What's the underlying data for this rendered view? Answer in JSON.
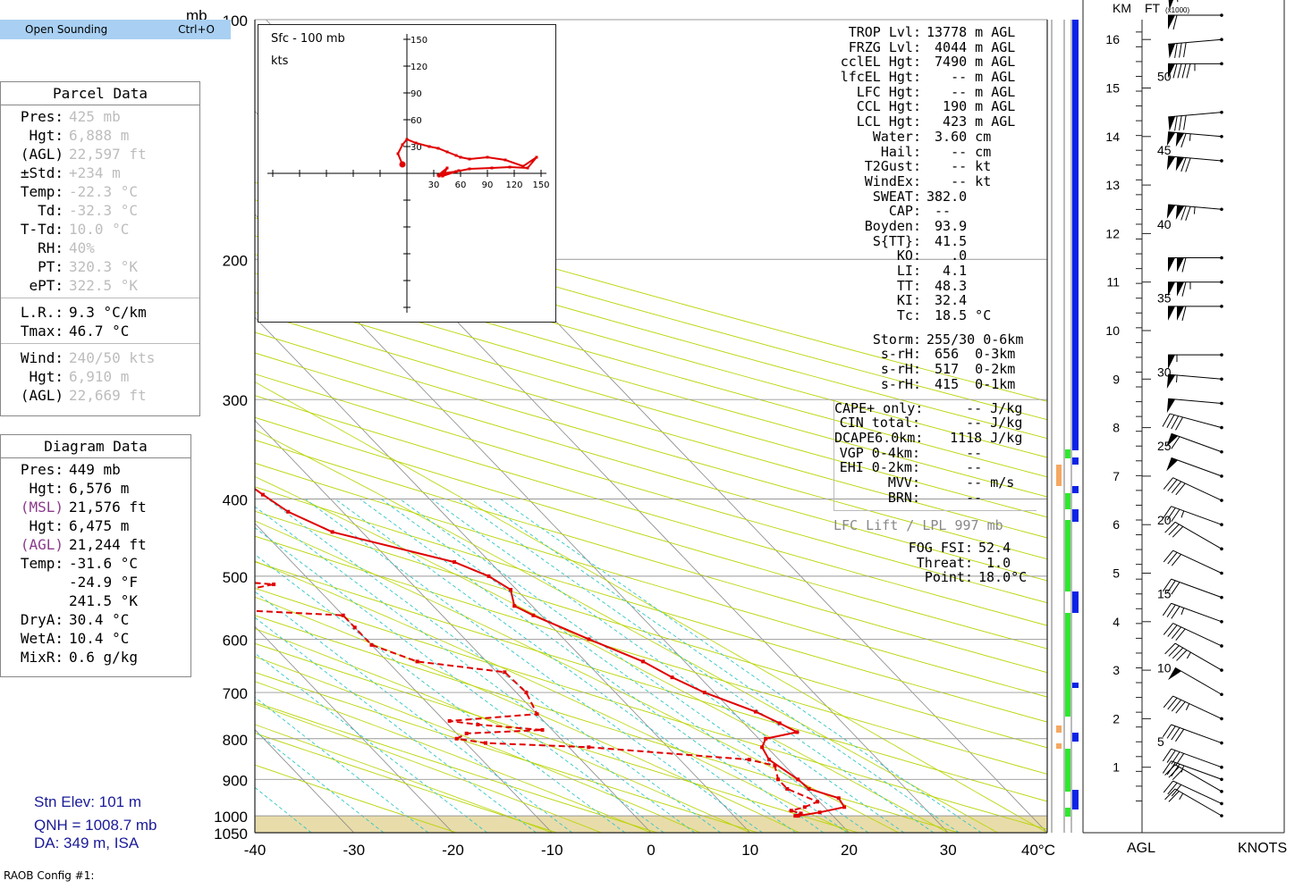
{
  "menu": {
    "label": "Open Sounding",
    "shortcut": "Ctrl+O"
  },
  "parcel_panel": {
    "title": "Parcel Data",
    "rows": [
      {
        "label": "Pres:",
        "value": "425 mb",
        "style": "grey"
      },
      {
        "label": "Hgt:",
        "value": "6,888 m",
        "style": "grey"
      },
      {
        "label": "(AGL)",
        "value": "22,597 ft",
        "style": "grey"
      },
      {
        "label": "±Std:",
        "value": "+234 m",
        "style": "grey"
      },
      {
        "label": "Temp:",
        "value": "-22.3 °C",
        "style": "grey"
      },
      {
        "label": "Td:",
        "value": "-32.3 °C",
        "style": "grey"
      },
      {
        "label": "T-Td:",
        "value": "10.0 °C",
        "style": "grey"
      },
      {
        "label": "RH:",
        "value": "40%",
        "style": "grey"
      },
      {
        "label": "PT:",
        "value": "320.3 °K",
        "style": "grey"
      },
      {
        "label": "ePT:",
        "value": "322.5 °K",
        "style": "grey"
      }
    ],
    "rows2": [
      {
        "label": "L.R.:",
        "value": "9.3 °C/km",
        "style": ""
      },
      {
        "label": "Tmax:",
        "value": "46.7 °C",
        "style": ""
      }
    ],
    "rows3": [
      {
        "label": "Wind:",
        "value": "240/50 kts",
        "style": "grey"
      },
      {
        "label": "Hgt:",
        "value": "6,910 m",
        "style": "grey"
      },
      {
        "label": "(AGL)",
        "value": "22,669 ft",
        "style": "grey"
      }
    ]
  },
  "diagram_panel": {
    "title": "Diagram Data",
    "rows": [
      {
        "label": "Pres:",
        "value": "449 mb",
        "style": ""
      },
      {
        "label": "Hgt:",
        "value": "6,576 m",
        "style": ""
      },
      {
        "label": "(MSL)",
        "value": "21,576 ft",
        "style": "purple"
      },
      {
        "label": "Hgt:",
        "value": "6,475 m",
        "style": ""
      },
      {
        "label": "(AGL)",
        "value": "21,244 ft",
        "style": "purple"
      },
      {
        "label": "Temp:",
        "value": "-31.6 °C",
        "style": ""
      },
      {
        "label": "",
        "value": "-24.9 °F",
        "style": ""
      },
      {
        "label": "",
        "value": "241.5 °K",
        "style": ""
      },
      {
        "label": "DryA:",
        "value": "30.4 °C",
        "style": ""
      },
      {
        "label": "WetA:",
        "value": "10.4 °C",
        "style": ""
      },
      {
        "label": "MixR:",
        "value": "0.6 g/kg",
        "style": ""
      }
    ]
  },
  "station": {
    "elev": "Stn Elev: 101 m",
    "qnh": "QNH = 1008.7 mb",
    "da": "DA: 349 m, ISA"
  },
  "config": "RAOB Config #1:",
  "indices": {
    "group1": [
      {
        "label": "TROP Lvl:",
        "value": "13778 m AGL"
      },
      {
        "label": "FRZG Lvl:",
        "value": " 4044 m AGL"
      },
      {
        "label": "cclEL Hgt:",
        "value": " 7490 m AGL"
      },
      {
        "label": "lfcEL Hgt:",
        "value": "   -- m AGL"
      },
      {
        "label": "LFC Hgt:",
        "value": "   -- m AGL"
      },
      {
        "label": "CCL Hgt:",
        "value": "  190 m AGL"
      },
      {
        "label": "LCL Hgt:",
        "value": "  423 m AGL"
      },
      {
        "label": "Water:",
        "value": " 3.60 cm"
      },
      {
        "label": "Hail:",
        "value": "   -- cm"
      },
      {
        "label": "T2Gust:",
        "value": "   -- kt"
      },
      {
        "label": "WindEx:",
        "value": "   -- kt"
      },
      {
        "label": "SWEAT:",
        "value": "382.0"
      },
      {
        "label": "CAP:",
        "value": " --"
      },
      {
        "label": "Boyden:",
        "value": " 93.9"
      },
      {
        "label": "S{TT}:",
        "value": " 41.5"
      },
      {
        "label": "KO:",
        "value": "   .0"
      },
      {
        "label": "LI:",
        "value": "  4.1"
      },
      {
        "label": "TT:",
        "value": " 48.3"
      },
      {
        "label": "KI:",
        "value": " 32.4"
      },
      {
        "label": "Tc:",
        "value": " 18.5 °C"
      }
    ],
    "group2": [
      {
        "label": "Storm:",
        "value": "255/30 0-6km"
      },
      {
        "label": "s-rH:",
        "value": " 656  0-3km"
      },
      {
        "label": "s-rH:",
        "value": " 517  0-2km"
      },
      {
        "label": "s-rH:",
        "value": " 415  0-1km"
      }
    ],
    "group3": [
      {
        "label": "CAPE+ only:",
        "value": "     -- J/kg"
      },
      {
        "label": "CIN total:",
        "value": "     -- J/kg"
      },
      {
        "label": "DCAPE6.0km:",
        "value": "   1118 J/kg"
      },
      {
        "label": "VGP 0-4km:",
        "value": "     --"
      },
      {
        "label": "EHI 0-2km:",
        "value": "     --"
      },
      {
        "label": "MVV:",
        "value": "     -- m/s"
      },
      {
        "label": "BRN:",
        "value": "     --"
      }
    ],
    "lfc_lift": "LFC Lift / LPL 997 mb",
    "fog": [
      {
        "label": "FOG FSI:",
        "value": "52.4"
      },
      {
        "label": "Threat:",
        "value": " 1.0"
      },
      {
        "label": "Point:",
        "value": "18.0°C"
      }
    ]
  },
  "colors": {
    "profile": "#e00000",
    "grid": "#888888",
    "dry_adiabat": "#b8d400",
    "mixing_ratio": "#33c5c5",
    "ground": "#e8dcaa",
    "bar_blue": "#0b24e6",
    "bar_green": "#2ee82e",
    "bar_orange": "#f5a862"
  },
  "chart_data": {
    "type": "line",
    "title": "",
    "xlabel": "°C",
    "ylabel": "mb",
    "xlim": [
      -40,
      40
    ],
    "ylim": [
      1050,
      100
    ],
    "x_ticks": [
      "-40",
      "-30",
      "-20",
      "-10",
      "0",
      "10",
      "20",
      "30",
      "40°C"
    ],
    "p_ticks": [
      "100",
      "200",
      "300",
      "400",
      "500",
      "600",
      "700",
      "800",
      "900",
      "1000",
      "1050"
    ],
    "pressure_levels": [
      100,
      200,
      300,
      400,
      500,
      600,
      700,
      800,
      900,
      1000
    ],
    "temperature": [
      [
        1000,
        16.5
      ],
      [
        990,
        19.0
      ],
      [
        975,
        22.0
      ],
      [
        950,
        22.3
      ],
      [
        925,
        20.2
      ],
      [
        900,
        20.0
      ],
      [
        850,
        19.0
      ],
      [
        820,
        19.5
      ],
      [
        800,
        20.7
      ],
      [
        785,
        24.5
      ],
      [
        765,
        23.6
      ],
      [
        740,
        22.3
      ],
      [
        700,
        19.0
      ],
      [
        670,
        17.2
      ],
      [
        640,
        15.8
      ],
      [
        600,
        12.5
      ],
      [
        560,
        9.2
      ],
      [
        545,
        8.2
      ],
      [
        520,
        9.4
      ],
      [
        500,
        8.5
      ],
      [
        480,
        6.4
      ],
      [
        440,
        -3.0
      ],
      [
        415,
        -5.5
      ],
      [
        395,
        -6.4
      ],
      [
        372,
        -7.3
      ],
      [
        350,
        -8.0
      ],
      [
        330,
        -8.8
      ],
      [
        300,
        -13.3
      ],
      [
        280,
        -17.3
      ],
      [
        270,
        -17.8
      ],
      [
        250,
        -17.8
      ],
      [
        235,
        -20.8
      ],
      [
        215,
        -24.2
      ],
      [
        200,
        -27.2
      ],
      [
        190,
        -31.5
      ],
      [
        180,
        -31.5
      ],
      [
        170,
        -33.1
      ],
      [
        162,
        -34.4
      ],
      [
        155,
        -35.5
      ],
      [
        150,
        -37.0
      ],
      [
        145,
        -38.0
      ],
      [
        140,
        -39.5
      ],
      [
        130,
        -43.8
      ],
      [
        125,
        -45.0
      ],
      [
        120,
        -47.0
      ],
      [
        115,
        -50.5
      ],
      [
        112,
        -52.5
      ],
      [
        110,
        -55.0
      ]
    ],
    "dewpoint": [
      [
        1000,
        16.2
      ],
      [
        993,
        17.0
      ],
      [
        985,
        16.3
      ],
      [
        975,
        18.0
      ],
      [
        960,
        19.8
      ],
      [
        925,
        18.0
      ],
      [
        900,
        18.0
      ],
      [
        865,
        19.0
      ],
      [
        850,
        17.0
      ],
      [
        820,
        2.0
      ],
      [
        810,
        -8.0
      ],
      [
        800,
        -10.5
      ],
      [
        788,
        -9.0
      ],
      [
        780,
        -1.0
      ],
      [
        768,
        -7.0
      ],
      [
        760,
        -9.5
      ],
      [
        745,
        0.0
      ],
      [
        700,
        1.0
      ],
      [
        660,
        0.8
      ],
      [
        640,
        -7.0
      ],
      [
        610,
        -10.0
      ],
      [
        580,
        -10.0
      ],
      [
        560,
        -10.0
      ],
      [
        543,
        -30.5
      ],
      [
        525,
        -38.0
      ],
      [
        518,
        -16.5
      ],
      [
        512,
        -14.0
      ],
      [
        505,
        -20.0
      ],
      [
        495,
        -28.0
      ],
      [
        490,
        -22.0
      ],
      [
        475,
        -29.0
      ],
      [
        448,
        -24.0
      ],
      [
        430,
        -19.5
      ],
      [
        420,
        -13.5
      ],
      [
        410,
        -13.0
      ],
      [
        400,
        -14.0
      ],
      [
        380,
        -13.5
      ],
      [
        365,
        -16.5
      ],
      [
        340,
        -21.5
      ],
      [
        325,
        -47.0
      ],
      [
        300,
        -51.0
      ],
      [
        282,
        -43.5
      ],
      [
        275,
        -43.0
      ],
      [
        272,
        -36.5
      ],
      [
        263,
        -30.5
      ],
      [
        258,
        -29.8
      ],
      [
        245,
        -34.8
      ],
      [
        230,
        -38.5
      ],
      [
        218,
        -42.0
      ],
      [
        203,
        -45.0
      ],
      [
        195,
        -47.0
      ],
      [
        185,
        -48.5
      ],
      [
        178,
        -52.0
      ],
      [
        170,
        -55.0
      ],
      [
        163,
        -57.0
      ],
      [
        150,
        -60.0
      ]
    ],
    "hodograph": {
      "title": "Sfc - 100 mb",
      "units": "kts",
      "ticks": [
        "30",
        "60",
        "90",
        "120",
        "150"
      ],
      "points": [
        [
          -5,
          10
        ],
        [
          -10,
          22
        ],
        [
          -5,
          32
        ],
        [
          0,
          38
        ],
        [
          10,
          34
        ],
        [
          25,
          30
        ],
        [
          35,
          28
        ],
        [
          45,
          24
        ],
        [
          55,
          20
        ],
        [
          60,
          18
        ],
        [
          70,
          16
        ],
        [
          90,
          18
        ],
        [
          110,
          15
        ],
        [
          130,
          8
        ],
        [
          145,
          18
        ],
        [
          135,
          6
        ],
        [
          115,
          7
        ],
        [
          95,
          6
        ],
        [
          70,
          5
        ],
        [
          55,
          2
        ],
        [
          40,
          0
        ],
        [
          35,
          -2
        ],
        [
          45,
          6
        ],
        [
          40,
          -3
        ],
        [
          58,
          3
        ],
        [
          36,
          -3
        ]
      ]
    },
    "km_ticks": [
      "1",
      "2",
      "3",
      "4",
      "5",
      "6",
      "7",
      "8",
      "9",
      "10",
      "11",
      "12",
      "13",
      "14",
      "15",
      "16"
    ],
    "ft_ticks": [
      "5",
      "10",
      "15",
      "20",
      "25",
      "30",
      "35",
      "40",
      "45",
      "50"
    ],
    "wind_barbs": [
      [
        0.0,
        240,
        25
      ],
      [
        0.25,
        245,
        30
      ],
      [
        0.5,
        240,
        30
      ],
      [
        0.75,
        250,
        35
      ],
      [
        1.0,
        250,
        40
      ],
      [
        1.5,
        250,
        40
      ],
      [
        2.0,
        245,
        45
      ],
      [
        2.5,
        240,
        50
      ],
      [
        3.0,
        240,
        45
      ],
      [
        3.5,
        245,
        40
      ],
      [
        4.0,
        250,
        35
      ],
      [
        4.5,
        250,
        30
      ],
      [
        5.0,
        245,
        30
      ],
      [
        5.5,
        240,
        30
      ],
      [
        6.0,
        250,
        35
      ],
      [
        6.5,
        245,
        40
      ],
      [
        7.0,
        250,
        50
      ],
      [
        7.5,
        250,
        60
      ],
      [
        8.0,
        255,
        40
      ],
      [
        8.5,
        265,
        50
      ],
      [
        9.0,
        265,
        55
      ],
      [
        9.5,
        270,
        55
      ],
      [
        10.5,
        270,
        110
      ],
      [
        11.0,
        270,
        115
      ],
      [
        11.5,
        270,
        110
      ],
      [
        12.5,
        265,
        125
      ],
      [
        13.5,
        265,
        120
      ],
      [
        14.0,
        265,
        115
      ],
      [
        14.5,
        275,
        80
      ],
      [
        15.5,
        270,
        95
      ],
      [
        16.0,
        275,
        80
      ],
      [
        16.5,
        270,
        60
      ],
      [
        17.0,
        275,
        55
      ]
    ],
    "header_km": "KM",
    "header_ft": "FT",
    "header_ft_sub": "(x1000)",
    "footer_agl": "AGL",
    "footer_knots": "KNOTS"
  }
}
